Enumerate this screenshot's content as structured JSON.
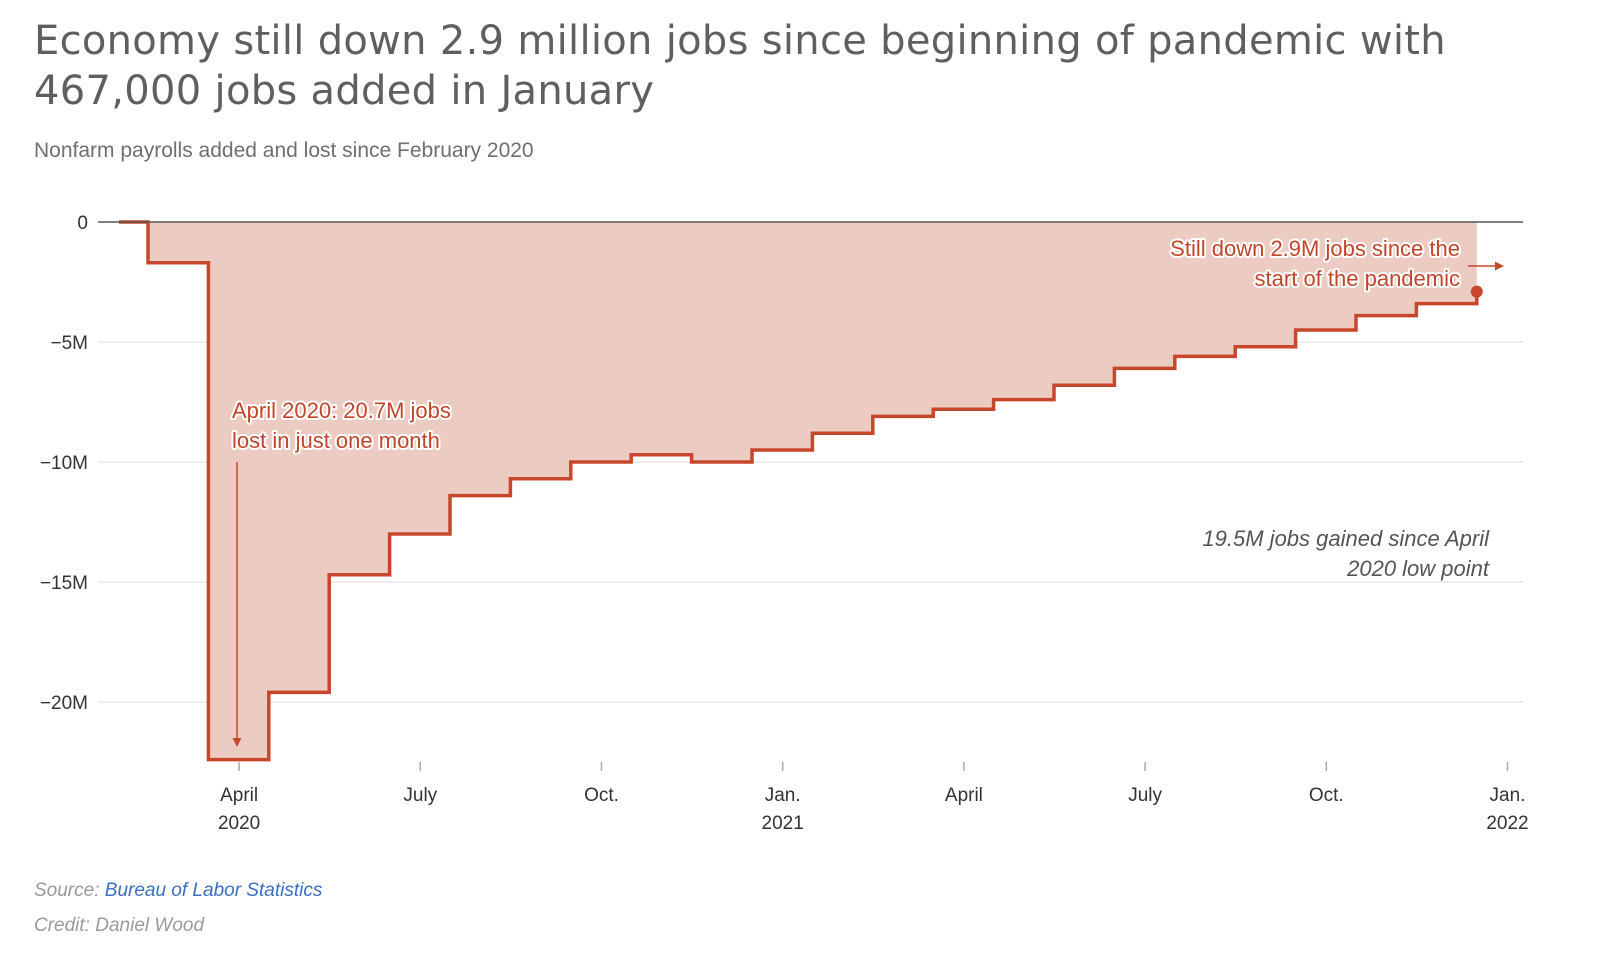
{
  "header": {
    "title": "Economy still down 2.9 million jobs since beginning of pandemic with 467,000 jobs added in January",
    "subtitle": "Nonfarm payrolls added and lost since February 2020"
  },
  "footer": {
    "source_label": "Source: ",
    "source_link": "Bureau of Labor Statistics",
    "credit": "Credit: Daniel Wood"
  },
  "colors": {
    "line": "#c8472c",
    "fill": "#eccbc3",
    "grid": "#e6e6e6",
    "zero_line": "#555555"
  },
  "chart_data": {
    "type": "area",
    "step": true,
    "units": "millions of jobs vs. February 2020",
    "x": [
      "2020-02",
      "2020-03",
      "2020-04",
      "2020-05",
      "2020-06",
      "2020-07",
      "2020-08",
      "2020-09",
      "2020-10",
      "2020-11",
      "2020-12",
      "2021-01",
      "2021-02",
      "2021-03",
      "2021-04",
      "2021-05",
      "2021-06",
      "2021-07",
      "2021-08",
      "2021-09",
      "2021-10",
      "2021-11",
      "2021-12",
      "2022-01"
    ],
    "values": [
      0,
      -1.7,
      -22.4,
      -19.6,
      -14.7,
      -13.0,
      -11.4,
      -10.7,
      -10.0,
      -9.7,
      -10.0,
      -9.5,
      -8.8,
      -8.1,
      -7.8,
      -7.4,
      -6.8,
      -6.1,
      -5.6,
      -5.2,
      -4.5,
      -3.9,
      -3.4,
      -2.9
    ],
    "ylim": [
      -22.4,
      0
    ],
    "y_ticks": [
      {
        "value": 0,
        "label": "0"
      },
      {
        "value": -5,
        "label": "−5M"
      },
      {
        "value": -10,
        "label": "−10M"
      },
      {
        "value": -15,
        "label": "−15M"
      },
      {
        "value": -20,
        "label": "−20M"
      }
    ],
    "x_ticks": [
      {
        "date": "2020-04",
        "line1": "April",
        "line2": "2020"
      },
      {
        "date": "2020-07",
        "line1": "July",
        "line2": ""
      },
      {
        "date": "2020-10",
        "line1": "Oct.",
        "line2": ""
      },
      {
        "date": "2021-01",
        "line1": "Jan.",
        "line2": "2021"
      },
      {
        "date": "2021-04",
        "line1": "April",
        "line2": ""
      },
      {
        "date": "2021-07",
        "line1": "July",
        "line2": ""
      },
      {
        "date": "2021-10",
        "line1": "Oct.",
        "line2": ""
      },
      {
        "date": "2022-01",
        "line1": "Jan.",
        "line2": "2022"
      }
    ],
    "grid": true,
    "annotations": [
      {
        "id": "april-low",
        "lines": [
          "April 2020: 20.7M jobs",
          "lost in just one month"
        ]
      },
      {
        "id": "still-down",
        "lines": [
          "Still down 2.9M jobs since the",
          "start of the pandemic"
        ]
      },
      {
        "id": "jobs-gained",
        "lines": [
          "19.5M jobs gained since April",
          "2020 low point"
        ]
      }
    ]
  }
}
